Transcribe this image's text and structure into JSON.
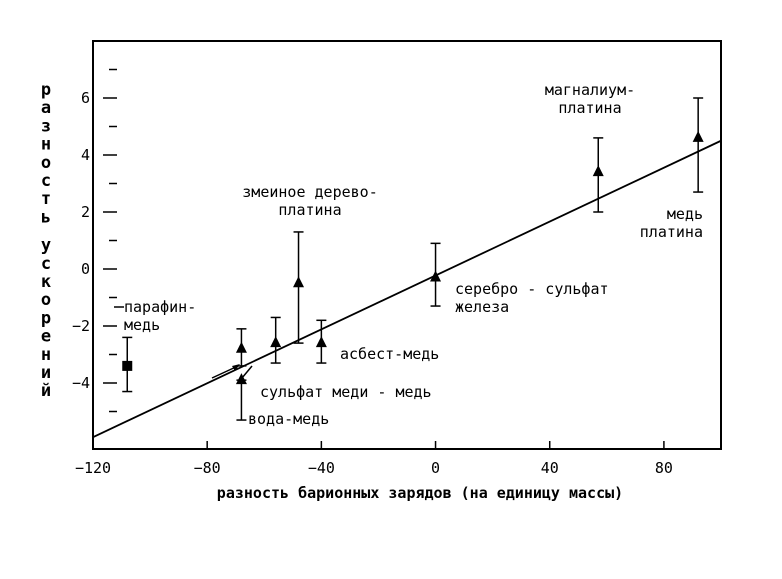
{
  "chart_data": {
    "type": "scatter",
    "title": "",
    "xlabel": "разность барионных зарядов (на единицу массы)",
    "ylabel": "разность ускорений",
    "xlim": [
      -120,
      100
    ],
    "ylim": [
      -6,
      8
    ],
    "xticks": [
      -120,
      -80,
      -40,
      0,
      40,
      80
    ],
    "xtick_labels": [
      "−120",
      "−80",
      "−40",
      "0",
      "40",
      "80"
    ],
    "yticks": [
      -4,
      -2,
      0,
      2,
      4,
      6
    ],
    "ytick_labels": [
      "−4",
      "−2",
      "0",
      "2",
      "4",
      "6"
    ],
    "grid": false,
    "legend": "none",
    "fit_line": {
      "x": [
        -120,
        100
      ],
      "y": [
        -5.9,
        4.5
      ]
    },
    "points": [
      {
        "label": "парафин-\nмедь",
        "x": -108,
        "y": -3.4,
        "err_low": -4.3,
        "err_high": -2.4,
        "marker": "square"
      },
      {
        "label": "",
        "x": -68,
        "y": -2.8,
        "err_low": -3.4,
        "err_high": -2.1,
        "marker": "triangle"
      },
      {
        "label": "вода-медь",
        "x": -68,
        "y": -3.9,
        "err_low": -5.3,
        "err_high": -3.9,
        "marker": "triangle"
      },
      {
        "label": "",
        "x": -56,
        "y": -2.6,
        "err_low": -3.3,
        "err_high": -1.7,
        "marker": "triangle"
      },
      {
        "label": "змеиное дерево-\nплатина",
        "x": -48,
        "y": -0.5,
        "err_low": -2.6,
        "err_high": 1.3,
        "marker": "triangle"
      },
      {
        "label": "асбест-медь",
        "x": -40,
        "y": -2.6,
        "err_low": -3.3,
        "err_high": -1.8,
        "marker": "triangle"
      },
      {
        "label": "серебро - сульфат\nжелеза",
        "x": 0,
        "y": -0.3,
        "err_low": -1.3,
        "err_high": 0.9,
        "marker": "triangle"
      },
      {
        "label": "магналиум-\nплатина",
        "x": 57,
        "y": 3.4,
        "err_low": 2.0,
        "err_high": 4.6,
        "marker": "triangle"
      },
      {
        "label": "медь\nплатина",
        "x": 92,
        "y": 4.6,
        "err_low": 2.7,
        "err_high": 6.0,
        "marker": "triangle"
      }
    ],
    "annotations": [
      {
        "text": "сульфат меди - медь"
      }
    ]
  }
}
